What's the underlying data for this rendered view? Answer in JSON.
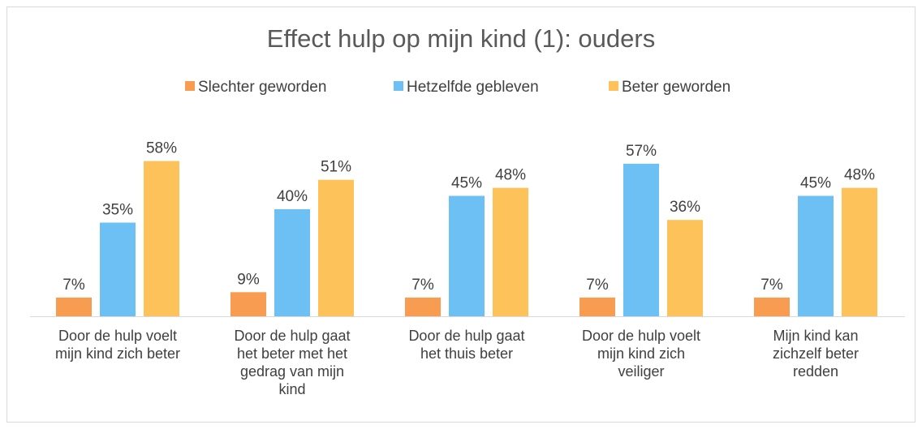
{
  "chart_data": {
    "type": "bar",
    "title": "Effect hulp op mijn kind (1): ouders",
    "categories": [
      "Door de hulp voelt\nmijn kind zich beter",
      "Door de hulp gaat\nhet beter met het\ngedrag van mijn\nkind",
      "Door de hulp gaat\nhet thuis beter",
      "Door de hulp voelt\nmijn kind zich\nveiliger",
      "Mijn kind kan\nzichzelf beter\nredden"
    ],
    "series": [
      {
        "name": "Slechter geworden",
        "color": "#f89c52",
        "values": [
          7,
          9,
          7,
          7,
          7
        ],
        "value_labels": [
          "7%",
          "9%",
          "7%",
          "7%",
          "7%"
        ]
      },
      {
        "name": "Hetzelfde gebleven",
        "color": "#6cc0f4",
        "values": [
          35,
          40,
          45,
          57,
          45
        ],
        "value_labels": [
          "35%",
          "40%",
          "45%",
          "57%",
          "45%"
        ]
      },
      {
        "name": "Beter geworden",
        "color": "#fdc35a",
        "values": [
          58,
          51,
          48,
          36,
          48
        ],
        "value_labels": [
          "58%",
          "51%",
          "48%",
          "36%",
          "48%"
        ]
      }
    ],
    "legend": "top"
  }
}
